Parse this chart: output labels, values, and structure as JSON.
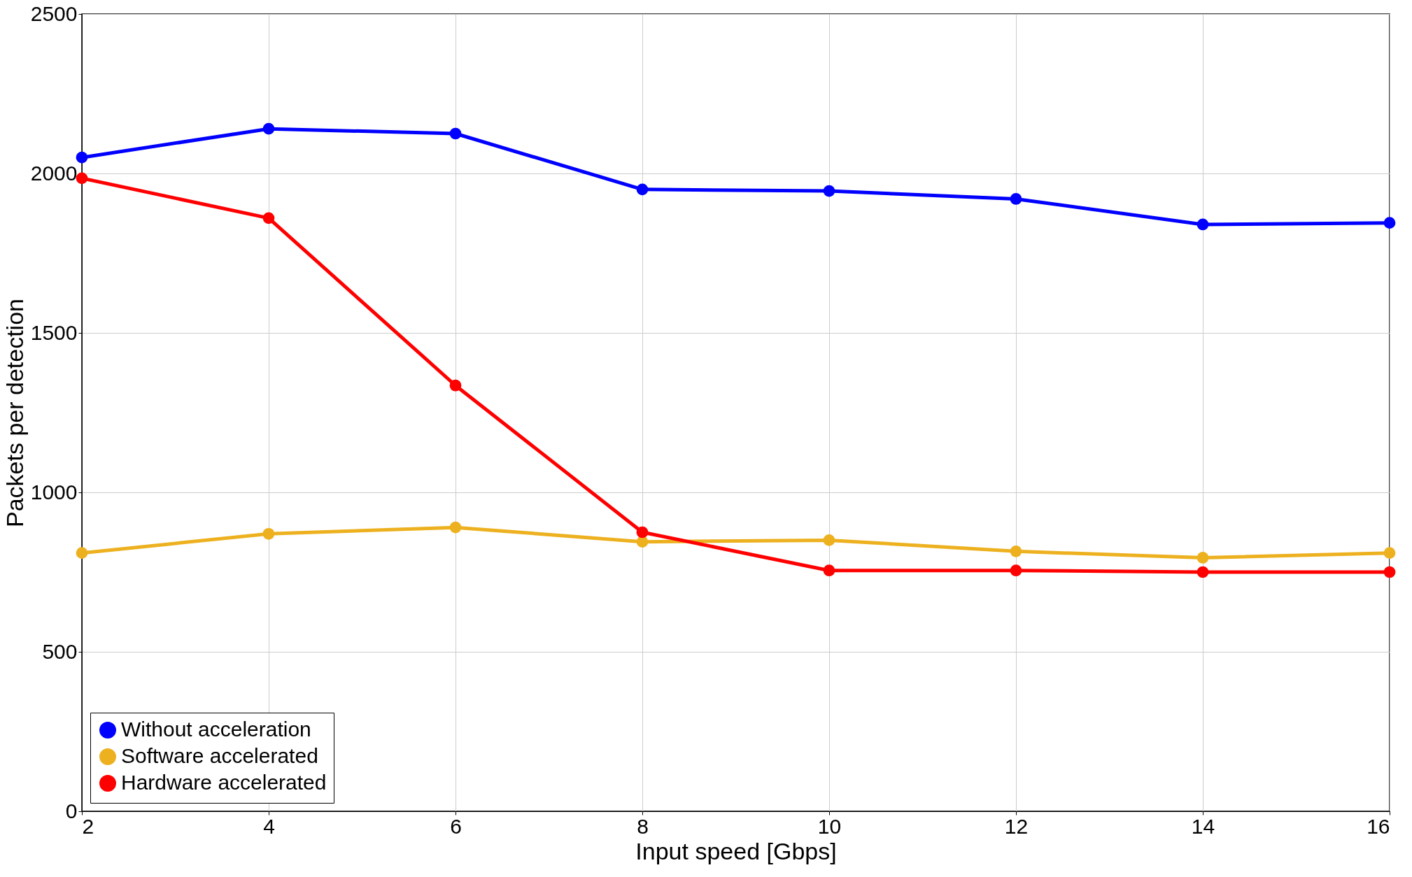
{
  "chart_data": {
    "type": "line",
    "xlabel": "Input speed [Gbps]",
    "ylabel": "Packets per detection",
    "x": [
      2,
      4,
      6,
      8,
      10,
      12,
      14,
      16
    ],
    "series": [
      {
        "name": "Without acceleration",
        "color": "#0000ff",
        "values": [
          2050,
          2140,
          2125,
          1950,
          1945,
          1920,
          1840,
          1845
        ]
      },
      {
        "name": "Software accelerated",
        "color": "#edb120",
        "values": [
          810,
          870,
          890,
          845,
          850,
          815,
          795,
          810
        ]
      },
      {
        "name": "Hardware accelerated",
        "color": "#ff0000",
        "values": [
          1985,
          1860,
          1335,
          875,
          755,
          755,
          750,
          750
        ]
      }
    ],
    "xlim": [
      2,
      16
    ],
    "xticks": [
      2,
      4,
      6,
      8,
      10,
      12,
      14,
      16
    ],
    "ylim": [
      0,
      2500
    ],
    "yticks": [
      0,
      500,
      1000,
      1500,
      2000,
      2500
    ],
    "grid": true,
    "legend": "bottom left",
    "marker": "circle",
    "line_style": "solid"
  }
}
